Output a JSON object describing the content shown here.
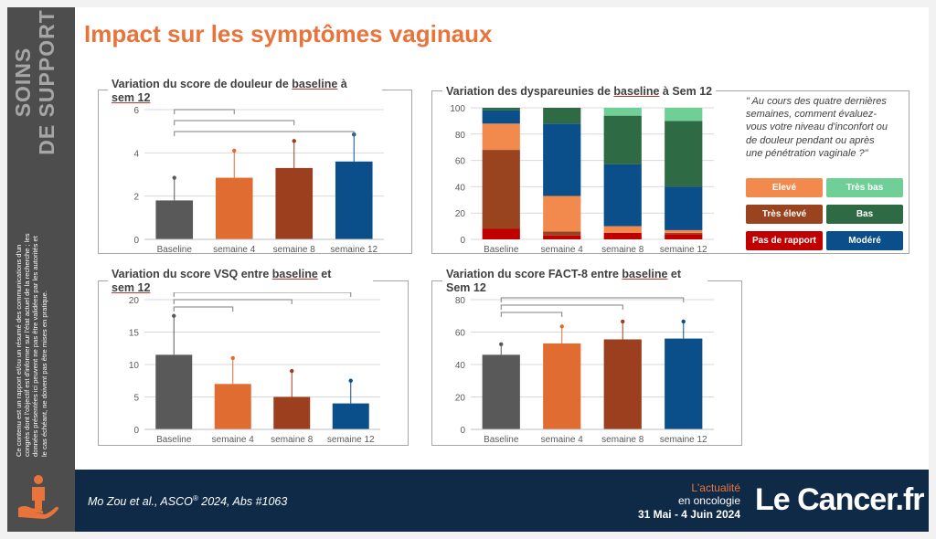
{
  "sidebar": {
    "title_line1": "SOINS",
    "title_line2": "DE SUPPORT",
    "note": "Ce contenu est un rapport et/ou un résumé des communications d'un congrès dont l'objectif est d'informer sur l'état actuel de la recherche ; les données présentées ici peuvent ne pas être validées par les autorités et le cas échéant, ne doivent pas être mises en pratique.",
    "icon": "care-person-hand-icon"
  },
  "page_title": "Impact sur les symptômes vaginaux",
  "panels": {
    "p1": {
      "title_a": "Variation du score de douleur de ",
      "title_u1": "baseline",
      "title_b": " à ",
      "title_u2": "sem 12",
      "title_c": ""
    },
    "p2": {
      "title_a": "Variation des dyspareunies de ",
      "title_u1": "baseline",
      "title_b": " à Sem 12"
    },
    "p3": {
      "title_a": "Variation du score VSQ entre ",
      "title_u1": "baseline",
      "title_b": " et ",
      "title_u2": "sem 12"
    },
    "p4": {
      "title_a": "Variation du score FACT-8 entre ",
      "title_u1": "baseline",
      "title_b": " et Sem 12"
    }
  },
  "question": "\" Au cours des quatre dernières semaines, comment évaluez-vous votre niveau d'inconfort ou de douleur pendant ou après une pénétration vaginale ?\"",
  "legend": [
    {
      "label": "Elevé",
      "color": "#f28a4e"
    },
    {
      "label": "Très bas",
      "color": "#6fcf97"
    },
    {
      "label": "Très élevé",
      "color": "#99441f"
    },
    {
      "label": "Bas",
      "color": "#2e6b44"
    },
    {
      "label": "Pas de rapport",
      "color": "#c00000"
    },
    {
      "label": "Modéré",
      "color": "#0b4f8a"
    }
  ],
  "colors": {
    "baseline": "#595959",
    "s4": "#e06c32",
    "s8": "#9c3f1f",
    "s12": "#0b4f8a",
    "accent": "#e8743b",
    "footer": "#0f2a47"
  },
  "chart_data": [
    {
      "type": "bar",
      "categories": [
        "Baseline",
        "semaine 4",
        "semaine 8",
        "semaine 12"
      ],
      "values": [
        1.8,
        2.85,
        3.3,
        3.6
      ],
      "errors_upper": [
        2.85,
        4.1,
        4.55,
        4.85
      ],
      "ylim": [
        0,
        6
      ],
      "yticks": [
        "0",
        "2",
        "4",
        "6"
      ],
      "ytick_values": [
        0,
        2,
        4,
        6
      ]
    },
    {
      "type": "bar",
      "stacked": true,
      "categories": [
        "Baseline",
        "semaine 4",
        "semaine 8",
        "semaine 12"
      ],
      "ylim": [
        0,
        100
      ],
      "yticks": [
        "0",
        "20",
        "40",
        "60",
        "80",
        "100"
      ],
      "ytick_values": [
        0,
        20,
        40,
        60,
        80,
        100
      ],
      "series": [
        {
          "name": "Pas de rapport",
          "values": [
            8,
            3,
            5,
            4
          ]
        },
        {
          "name": "Très élevé",
          "values": [
            60,
            3,
            0,
            1
          ]
        },
        {
          "name": "Elevé",
          "values": [
            20,
            27,
            5,
            2
          ]
        },
        {
          "name": "Modéré",
          "values": [
            10,
            55,
            47,
            33
          ]
        },
        {
          "name": "Bas",
          "values": [
            2,
            12,
            37,
            50
          ]
        },
        {
          "name": "Très bas",
          "values": [
            0,
            0,
            6,
            10
          ]
        }
      ]
    },
    {
      "type": "bar",
      "categories": [
        "Baseline",
        "semaine 4",
        "semaine 8",
        "semaine 12"
      ],
      "values": [
        11.5,
        7,
        5,
        4
      ],
      "errors_upper": [
        17.5,
        11,
        9,
        7.5
      ],
      "ylim": [
        0,
        20
      ],
      "yticks": [
        "0",
        "5",
        "10",
        "15",
        "20"
      ],
      "ytick_values": [
        0,
        5,
        10,
        15,
        20
      ]
    },
    {
      "type": "bar",
      "categories": [
        "Baseline",
        "semaine 4",
        "semaine 8",
        "semaine 12"
      ],
      "values": [
        46,
        53,
        55.5,
        56
      ],
      "errors_upper": [
        52.5,
        63.5,
        66.5,
        66.5
      ],
      "ylim": [
        0,
        80
      ],
      "yticks": [
        "0",
        "20",
        "40",
        "60",
        "80"
      ],
      "ytick_values": [
        0,
        20,
        40,
        60,
        80
      ]
    }
  ],
  "footer": {
    "citation_a": "Mo Zou et al., ASCO",
    "citation_sup": "®",
    "citation_b": " 2024, Abs #1063",
    "line1": "L'actualité",
    "line2": "en oncologie",
    "line3": "31 Mai - 4 Juin 2024",
    "logo": "Le Cancer.fr"
  }
}
